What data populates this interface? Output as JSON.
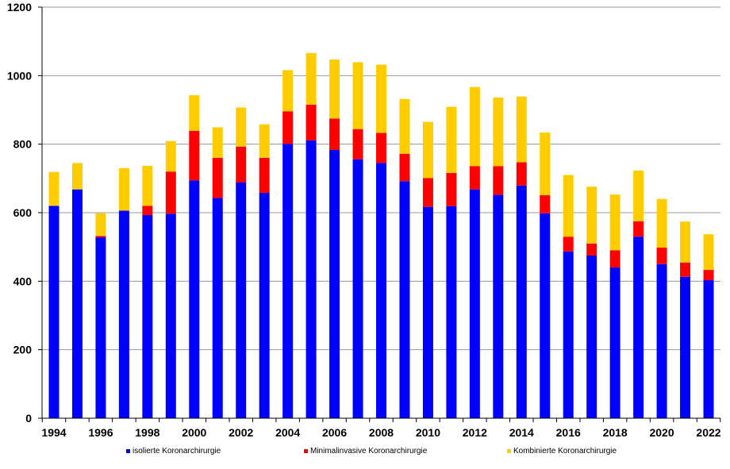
{
  "chart_data": {
    "type": "bar",
    "stacked": true,
    "title": "",
    "xlabel": "",
    "ylabel": "",
    "ylim": [
      0,
      1200
    ],
    "yticks": [
      0,
      200,
      400,
      600,
      800,
      1000,
      1200
    ],
    "grid": true,
    "legend_position": "bottom",
    "categories": [
      "1994",
      "1995",
      "1996",
      "1997",
      "1998",
      "1999",
      "2000",
      "2001",
      "2002",
      "2003",
      "2004",
      "2005",
      "2006",
      "2007",
      "2008",
      "2009",
      "2010",
      "2011",
      "2012",
      "2013",
      "2014",
      "2015",
      "2016",
      "2017",
      "2018",
      "2019",
      "2020",
      "2021",
      "2022"
    ],
    "xtick_labels": [
      "1994",
      "",
      "1996",
      "",
      "1998",
      "",
      "2000",
      "",
      "2002",
      "",
      "2004",
      "",
      "2006",
      "",
      "2008",
      "",
      "2010",
      "",
      "2012",
      "",
      "2014",
      "",
      "2016",
      "",
      "2018",
      "",
      "2020",
      "",
      "2022"
    ],
    "series": [
      {
        "name": "isolierte Koronarchirurgie",
        "color": "#0000FF",
        "values": [
          620,
          668,
          528,
          606,
          593,
          597,
          694,
          643,
          688,
          658,
          801,
          811,
          783,
          756,
          745,
          692,
          617,
          619,
          668,
          652,
          679,
          598,
          487,
          475,
          440,
          530,
          450,
          413,
          403
        ]
      },
      {
        "name": "Minimalinvasive Koronarchirurgie",
        "color": "#FF0000",
        "values": [
          0,
          0,
          4,
          0,
          27,
          123,
          145,
          117,
          105,
          102,
          95,
          104,
          92,
          88,
          88,
          80,
          84,
          97,
          68,
          84,
          68,
          53,
          43,
          35,
          50,
          45,
          48,
          41,
          30
        ]
      },
      {
        "name": "Kombinierte Koronarchirurgie",
        "color": "#FFCC00",
        "values": [
          99,
          77,
          66,
          124,
          117,
          89,
          104,
          89,
          114,
          98,
          120,
          151,
          172,
          195,
          199,
          160,
          164,
          193,
          231,
          200,
          192,
          183,
          180,
          166,
          163,
          148,
          142,
          120,
          104
        ]
      }
    ]
  }
}
